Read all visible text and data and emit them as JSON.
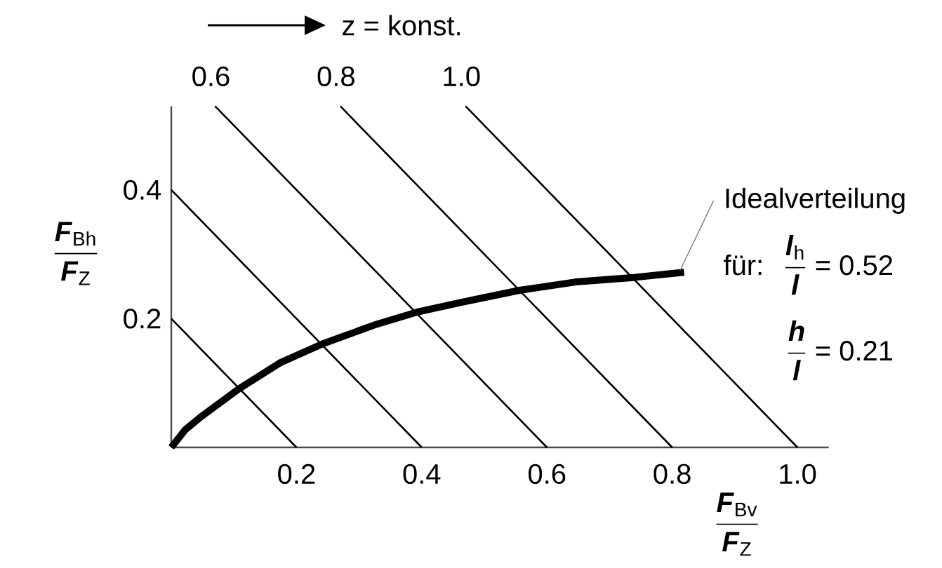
{
  "chart_data": {
    "type": "line",
    "xlabel": "\\frac{\\textbf{\\textit{F}}_{\\text{Bv}}}{\\textbf{\\textit{F}}_{\\text{Z}}}",
    "ylabel": "\\frac{\\textbf{\\textit{F}}_{\\text{Bh}}}{\\textbf{\\textit{F}}_{\\text{Z}}}",
    "annotations": [
      "z = konst.",
      "für:",
      "\\frac{\\textbf{\\textit{l}}_{\\text{h}}}{\\textbf{\\textit{l}}}\\text{ = 0.52}",
      "\\frac{\\textbf{\\textit{h}}}{\\textbf{\\textit{l}}}\\text{ = 0.21}"
    ],
    "xlim": [
      0,
      1.05
    ],
    "ylim": [
      0,
      0.53
    ],
    "xticks": [
      0.2,
      0.4,
      0.6,
      0.8,
      {
        "value": 1,
        "label": "1.0"
      }
    ],
    "yticks": [
      0.2,
      0.4
    ],
    "series": [
      {
        "color": "#000000",
        "x": [
          0,
          0.2
        ],
        "values": [
          0.2,
          0
        ]
      },
      {
        "color": "#000000",
        "x": [
          0,
          0.4
        ],
        "values": [
          0.4,
          0
        ]
      },
      {
        "name": "0.6",
        "color": "#000000",
        "x": [
          0.07,
          0.6
        ],
        "values": [
          0.53,
          0
        ]
      },
      {
        "name": "0.8",
        "color": "#000000",
        "x": [
          0.27,
          0.8
        ],
        "values": [
          0.53,
          0
        ]
      },
      {
        "name": "1.0",
        "color": "#000000",
        "x": [
          0.47,
          1.0
        ],
        "values": [
          0.53,
          0
        ]
      },
      {
        "name": "Idealverteilung",
        "color": "#000000",
        "x": [
          0,
          0.022,
          0.048,
          0.108,
          0.175,
          0.242,
          0.324,
          0.392,
          0.466,
          0.556,
          0.646,
          0.739,
          0.819
        ],
        "values": [
          0,
          0.027,
          0.048,
          0.091,
          0.132,
          0.161,
          0.19,
          0.21,
          0.226,
          0.244,
          0.257,
          0.264,
          0.272
        ]
      }
    ]
  }
}
